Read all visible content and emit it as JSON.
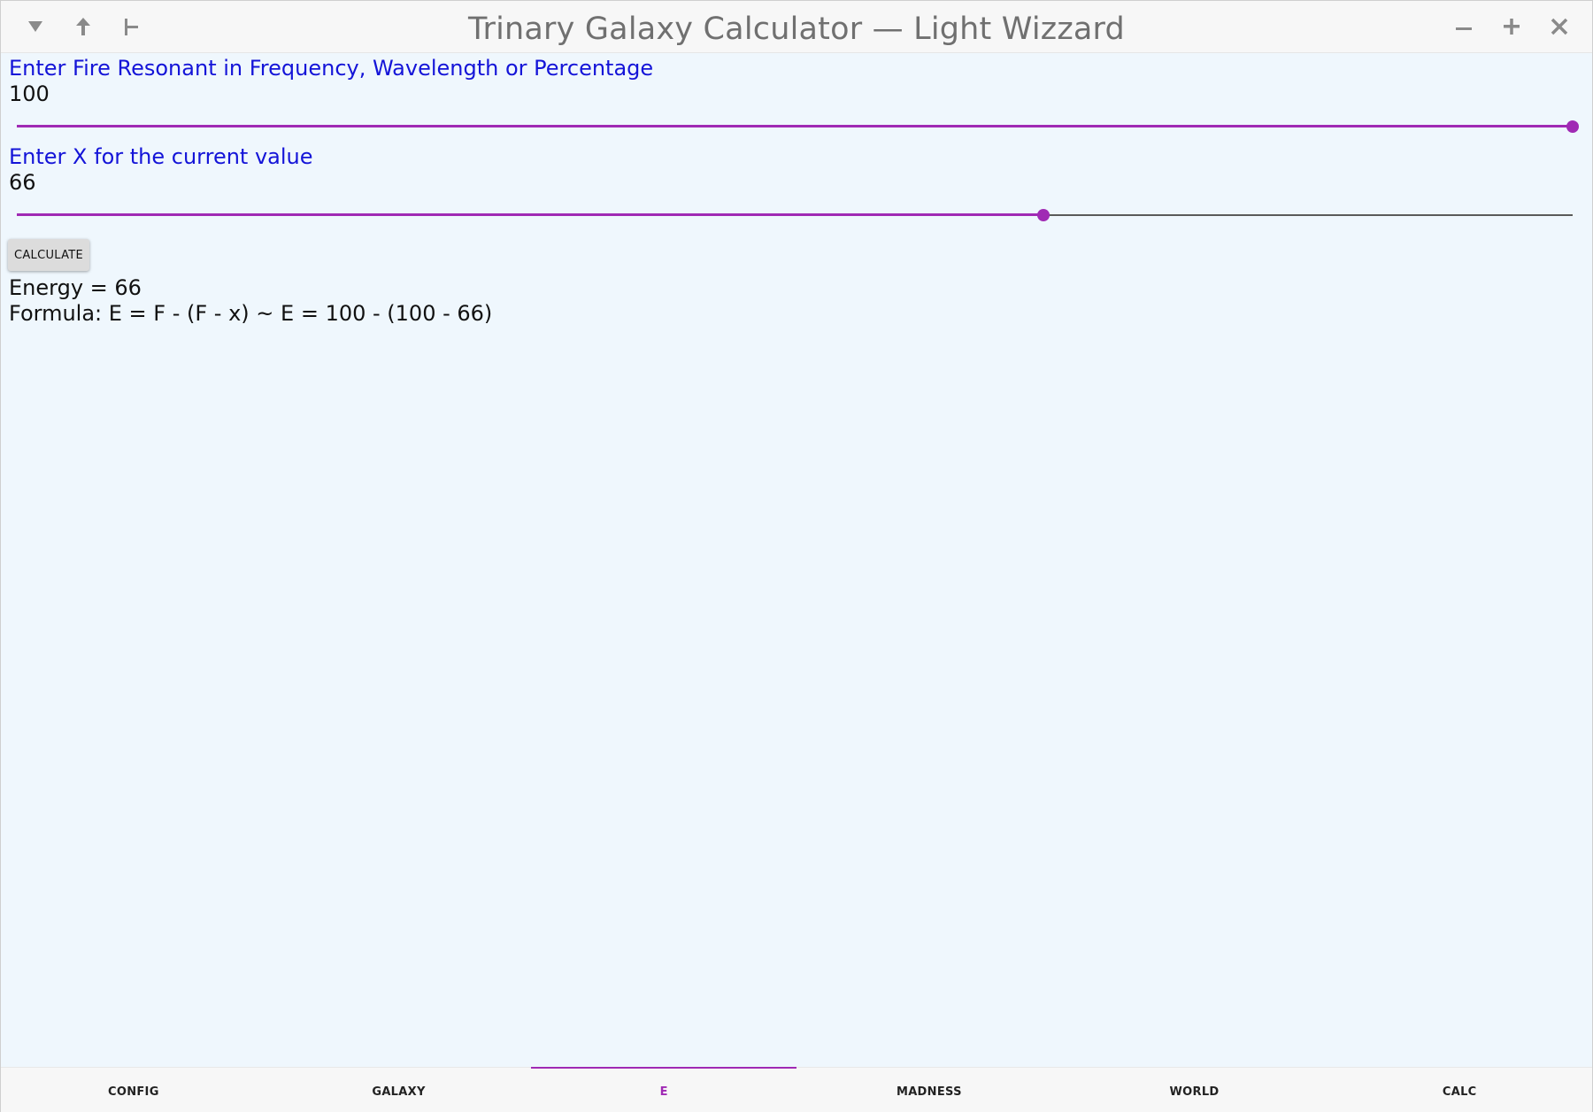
{
  "window": {
    "title": "Trinary Galaxy Calculator — Light Wizzard",
    "left_icons": [
      "menu-down-icon",
      "arrow-up-icon",
      "pin-icon"
    ],
    "right_icons": [
      "minimize-icon",
      "maximize-icon",
      "close-icon"
    ]
  },
  "fields": [
    {
      "label": "Enter Fire Resonant in Frequency, Wavelength or Percentage",
      "value": "100",
      "slider": {
        "min": 0,
        "max": 100,
        "value": 100
      }
    },
    {
      "label": "Enter X for the current value",
      "value": "66",
      "slider": {
        "min": 0,
        "max": 100,
        "value": 66
      }
    }
  ],
  "actions": {
    "calculate_label": "CALCULATE"
  },
  "result": {
    "energy": "Energy = 66",
    "formula": "Formula: E = F - (F - x) ~ E = 100 - (100 - 66)"
  },
  "tabs": [
    {
      "label": "CONFIG",
      "active": false
    },
    {
      "label": "GALAXY",
      "active": false
    },
    {
      "label": "E",
      "active": true
    },
    {
      "label": "MADNESS",
      "active": false
    },
    {
      "label": "WORLD",
      "active": false
    },
    {
      "label": "CALC",
      "active": false
    }
  ],
  "colors": {
    "accent": "#a02ab4",
    "label_text": "#1414d8",
    "background": "#eff7fd"
  }
}
